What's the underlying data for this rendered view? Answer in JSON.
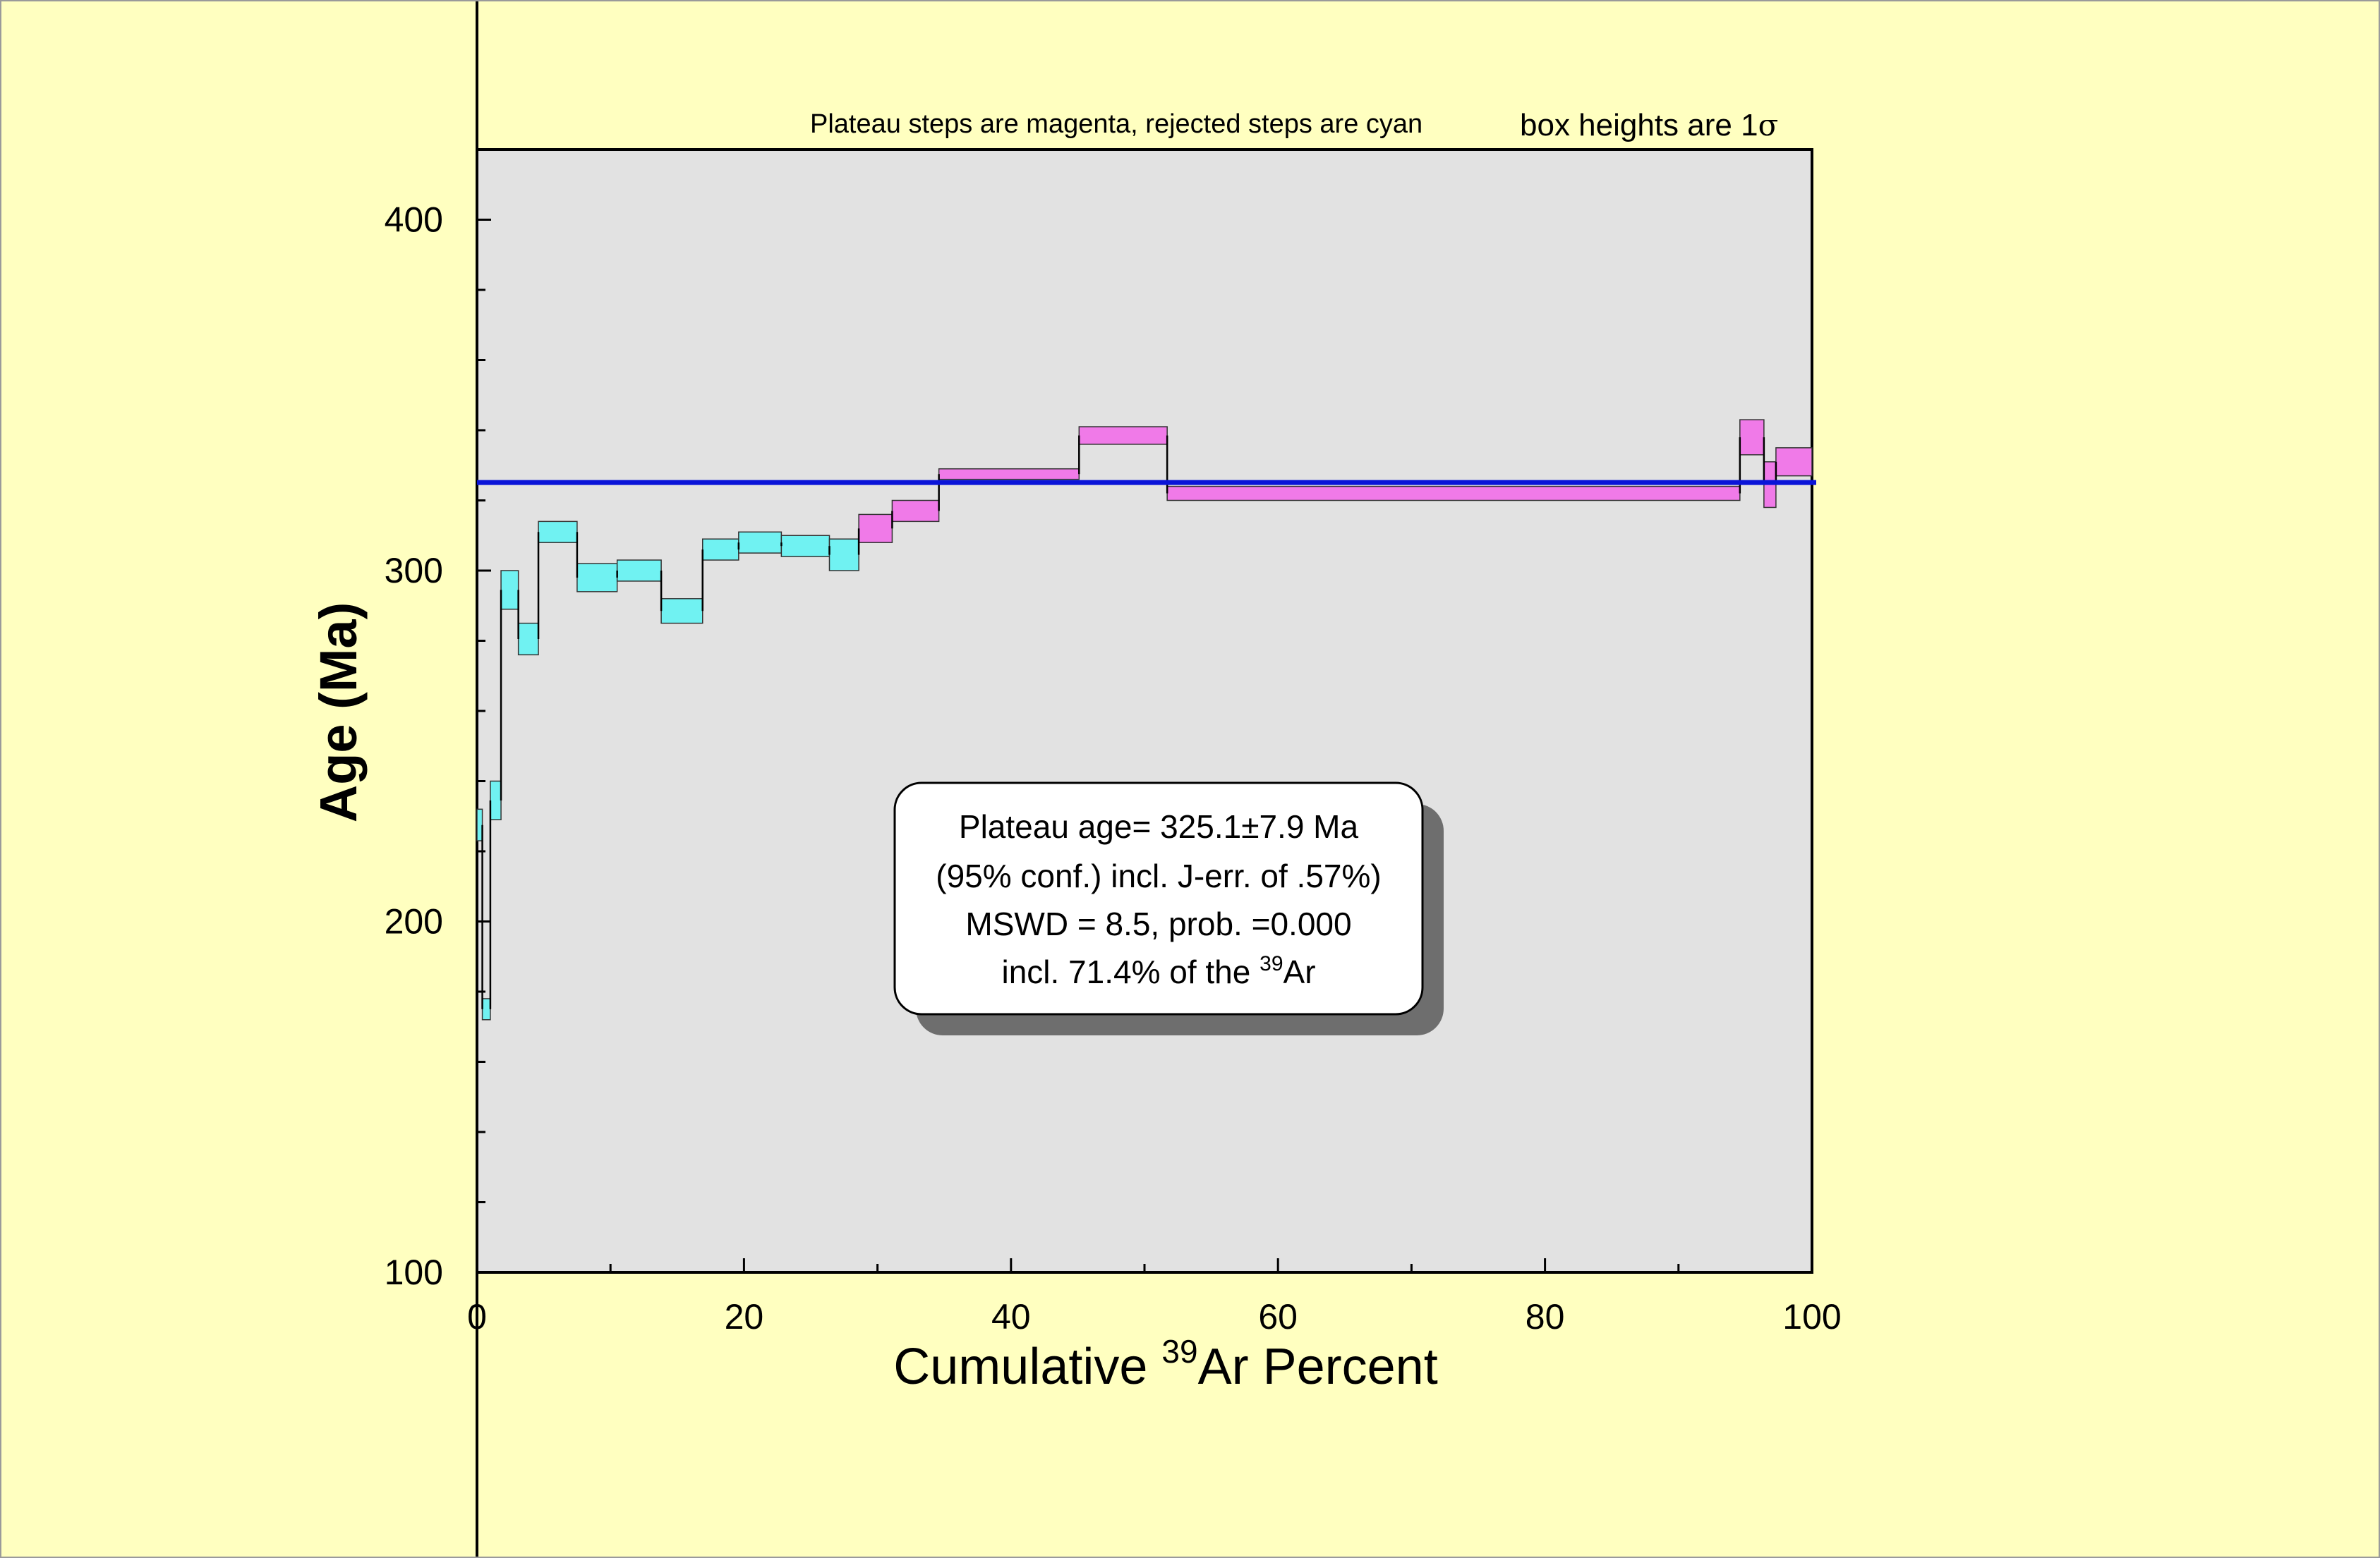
{
  "chart_data": {
    "type": "step-spectrum",
    "title_note_left": "Plateau steps are magenta, rejected steps are cyan",
    "title_note_right_prefix": "box heights are 1",
    "title_note_right_sigma": "σ",
    "xlabel_prefix": "Cumulative ",
    "xlabel_sup": "39",
    "xlabel_suffix": "Ar Percent",
    "ylabel": "Age (Ma)",
    "xlim": [
      0,
      100
    ],
    "ylim": [
      100,
      420
    ],
    "x_ticks": [
      0,
      20,
      40,
      60,
      80,
      100
    ],
    "x_minor_step": 10,
    "y_ticks": [
      100,
      200,
      300,
      400
    ],
    "y_minor_step": 20,
    "plateau_age": 325.1,
    "colors": {
      "plateau_step": "#f07ae8",
      "rejected_step": "#70f2f2",
      "plateau_line": "#0a14d8",
      "plot_bg": "#e2e2e2",
      "page_bg": "#ffffc0",
      "box_shadow": "#6e6e6e"
    },
    "steps": [
      {
        "x0": 0.0,
        "x1": 0.4,
        "lo": 223,
        "hi": 232,
        "type": "rejected"
      },
      {
        "x0": 0.4,
        "x1": 1.0,
        "lo": 172,
        "hi": 178,
        "type": "rejected"
      },
      {
        "x0": 1.0,
        "x1": 1.8,
        "lo": 229,
        "hi": 240,
        "type": "rejected"
      },
      {
        "x0": 1.8,
        "x1": 3.1,
        "lo": 289,
        "hi": 300,
        "type": "rejected"
      },
      {
        "x0": 3.1,
        "x1": 4.6,
        "lo": 276,
        "hi": 285,
        "type": "rejected"
      },
      {
        "x0": 4.6,
        "x1": 7.5,
        "lo": 308,
        "hi": 314,
        "type": "rejected"
      },
      {
        "x0": 7.5,
        "x1": 10.5,
        "lo": 294,
        "hi": 302,
        "type": "rejected"
      },
      {
        "x0": 10.5,
        "x1": 13.8,
        "lo": 297,
        "hi": 303,
        "type": "rejected"
      },
      {
        "x0": 13.8,
        "x1": 16.9,
        "lo": 285,
        "hi": 292,
        "type": "rejected"
      },
      {
        "x0": 16.9,
        "x1": 19.6,
        "lo": 303,
        "hi": 309,
        "type": "rejected"
      },
      {
        "x0": 19.6,
        "x1": 22.8,
        "lo": 305,
        "hi": 311,
        "type": "rejected"
      },
      {
        "x0": 22.8,
        "x1": 26.4,
        "lo": 304,
        "hi": 310,
        "type": "rejected"
      },
      {
        "x0": 26.4,
        "x1": 28.6,
        "lo": 300,
        "hi": 309,
        "type": "rejected"
      },
      {
        "x0": 28.6,
        "x1": 31.1,
        "lo": 308,
        "hi": 316,
        "type": "plateau"
      },
      {
        "x0": 31.1,
        "x1": 34.6,
        "lo": 314,
        "hi": 320,
        "type": "plateau"
      },
      {
        "x0": 34.6,
        "x1": 45.1,
        "lo": 326,
        "hi": 329,
        "type": "plateau"
      },
      {
        "x0": 45.1,
        "x1": 51.7,
        "lo": 336,
        "hi": 341,
        "type": "plateau"
      },
      {
        "x0": 51.7,
        "x1": 94.6,
        "lo": 320,
        "hi": 324,
        "type": "plateau"
      },
      {
        "x0": 94.6,
        "x1": 96.4,
        "lo": 333,
        "hi": 343,
        "type": "plateau"
      },
      {
        "x0": 96.4,
        "x1": 97.3,
        "lo": 318,
        "hi": 331,
        "type": "plateau"
      },
      {
        "x0": 97.3,
        "x1": 100.0,
        "lo": 327,
        "hi": 335,
        "type": "plateau"
      }
    ],
    "info_box": {
      "line1": "Plateau age= 325.1±7.9 Ma",
      "line2": "(95% conf.) incl. J-err. of .57%)",
      "line3": "MSWD = 8.5, prob. =0.000",
      "line4_prefix": "incl. 71.4% of the ",
      "line4_sup": "39",
      "line4_suffix": "Ar"
    }
  }
}
